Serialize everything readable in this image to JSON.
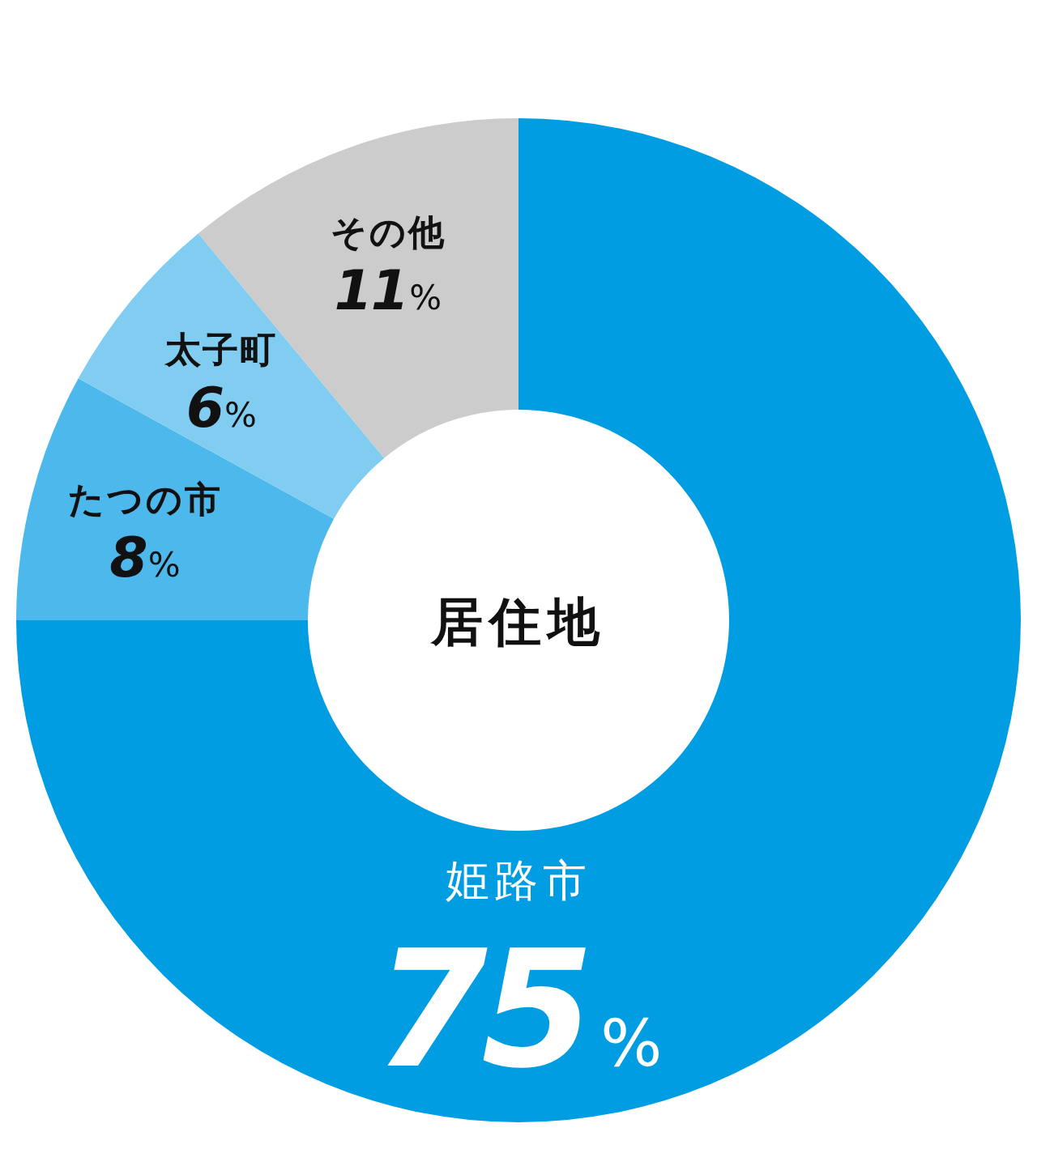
{
  "chart_data": {
    "type": "donut",
    "title": "居住地",
    "categories": [
      "姫路市",
      "たつの市",
      "太子町",
      "その他"
    ],
    "values": [
      75,
      8,
      6,
      11
    ],
    "colors": [
      "#009de3",
      "#4db8ec",
      "#80cdf1",
      "#cccccc"
    ],
    "value_labels": [
      "75%",
      "8%",
      "6%",
      "11%"
    ]
  }
}
